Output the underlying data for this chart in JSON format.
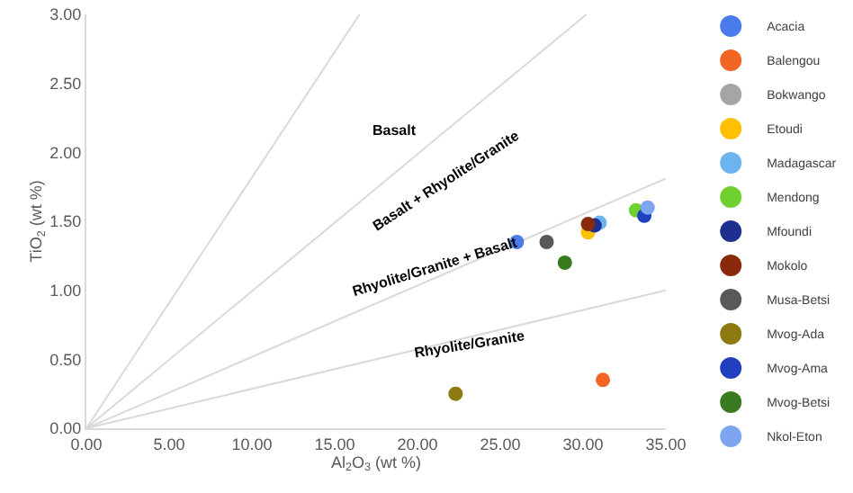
{
  "chart_data": {
    "type": "scatter",
    "xlabel": "Al$_{2}$O$_{3}$ (wt %)",
    "ylabel": "TiO$_{2}$ (wt %)",
    "xlim": [
      0,
      35
    ],
    "ylim": [
      0,
      3
    ],
    "xticks": [
      {
        "value": 0,
        "label": "0.00"
      },
      {
        "value": 5,
        "label": "5.00"
      },
      {
        "value": 10,
        "label": "10.00"
      },
      {
        "value": 15,
        "label": "15.00"
      },
      {
        "value": 20,
        "label": "20.00"
      },
      {
        "value": 25,
        "label": "25.00"
      },
      {
        "value": 30,
        "label": "30.00"
      },
      {
        "value": 35,
        "label": "35.00"
      }
    ],
    "yticks": [
      {
        "value": 0,
        "label": "0.00"
      },
      {
        "value": 0.5,
        "label": "0.50"
      },
      {
        "value": 1,
        "label": "1.00"
      },
      {
        "value": 1.5,
        "label": "1.50"
      },
      {
        "value": 2,
        "label": "2.00"
      },
      {
        "value": 2.5,
        "label": "2.50"
      },
      {
        "value": 3,
        "label": "3.00"
      }
    ],
    "grid": false,
    "legend": "right",
    "marker": "circle",
    "series": [
      {
        "type": "line",
        "marker": "none",
        "color": "#d9d9d9",
        "x": [
          0,
          16.5
        ],
        "values": [
          0,
          3.0
        ]
      },
      {
        "type": "line",
        "marker": "none",
        "color": "#d9d9d9",
        "x": [
          0,
          30.2
        ],
        "values": [
          0,
          3.0
        ]
      },
      {
        "type": "line",
        "marker": "none",
        "color": "#d9d9d9",
        "x": [
          0,
          35
        ],
        "values": [
          0,
          1.81
        ]
      },
      {
        "type": "line",
        "marker": "none",
        "color": "#d9d9d9",
        "x": [
          0,
          35
        ],
        "values": [
          0,
          1.0
        ]
      },
      {
        "name": "Acacia",
        "color": "#4a7bea",
        "x": [
          26.0
        ],
        "values": [
          1.35
        ]
      },
      {
        "name": "Balengou",
        "color": "#f26522",
        "x": [
          31.2
        ],
        "values": [
          0.35
        ]
      },
      {
        "name": "Bokwango",
        "color": "#a5a5a5",
        "x": [
          null
        ],
        "values": [
          null
        ]
      },
      {
        "name": "Etoudi",
        "color": "#ffc000",
        "x": [
          30.3
        ],
        "values": [
          1.42
        ]
      },
      {
        "name": "Madagascar",
        "color": "#6cb4f0",
        "x": [
          31.0
        ],
        "values": [
          1.49
        ]
      },
      {
        "name": "Mendong",
        "color": "#70d030",
        "x": [
          33.2
        ],
        "values": [
          1.58
        ]
      },
      {
        "name": "Mfoundi",
        "color": "#1f2f8f",
        "x": [
          30.7
        ],
        "values": [
          1.47
        ]
      },
      {
        "name": "Mokolo",
        "color": "#8b2a0a",
        "x": [
          30.3
        ],
        "values": [
          1.48
        ]
      },
      {
        "name": "Musa-Betsi",
        "color": "#595959",
        "x": [
          27.8
        ],
        "values": [
          1.35
        ]
      },
      {
        "name": "Mvog-Ada",
        "color": "#8c7a10",
        "x": [
          22.3
        ],
        "values": [
          0.25
        ]
      },
      {
        "name": "Mvog-Ama",
        "color": "#2040c0",
        "x": [
          33.7
        ],
        "values": [
          1.54
        ]
      },
      {
        "name": "Mvog-Betsi",
        "color": "#3a7a20",
        "x": [
          28.9
        ],
        "values": [
          1.2
        ]
      },
      {
        "name": "Nkol-Eton",
        "color": "#7ea6f0",
        "x": [
          33.9
        ],
        "values": [
          1.6
        ]
      }
    ],
    "annotations": [
      "Basalt",
      "Basalt + Rhyolite/Granite",
      "Rhyolite/Granite + Basalt",
      "Rhyolite/Granite"
    ]
  }
}
